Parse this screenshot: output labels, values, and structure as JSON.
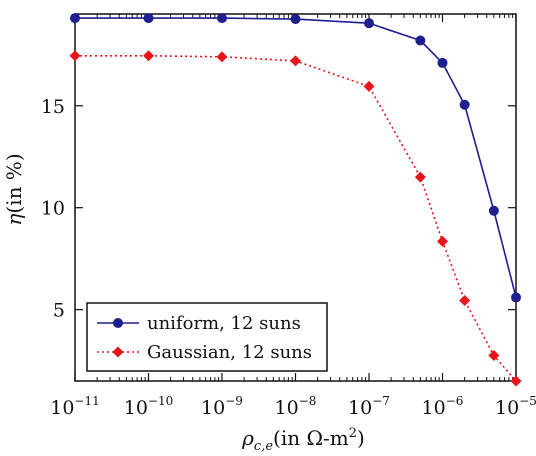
{
  "chart_data": {
    "type": "line",
    "xscale": "log",
    "xlabel_symbol": "ρ",
    "xlabel_sub": "c,e",
    "xlabel_text": "(in Ω-m",
    "xlabel_sup": "2",
    "xlabel_close": ")",
    "ylabel_symbol": "η",
    "ylabel_text": "(in %)",
    "xlim": [
      1e-11,
      1e-05
    ],
    "ylim": [
      1.5,
      19.5
    ],
    "x_ticks": [
      {
        "base": "10",
        "exp": "−11",
        "value": 1e-11
      },
      {
        "base": "10",
        "exp": "−10",
        "value": 1e-10
      },
      {
        "base": "10",
        "exp": "−9",
        "value": 1e-09
      },
      {
        "base": "10",
        "exp": "−8",
        "value": 1e-08
      },
      {
        "base": "10",
        "exp": "−7",
        "value": 1e-07
      },
      {
        "base": "10",
        "exp": "−6",
        "value": 1e-06
      },
      {
        "base": "10",
        "exp": "−5",
        "value": 1e-05
      }
    ],
    "y_ticks": [
      {
        "label": "5",
        "value": 5
      },
      {
        "label": "10",
        "value": 10
      },
      {
        "label": "15",
        "value": 15
      }
    ],
    "legend_position": "bottom-left",
    "series": [
      {
        "name": "uniform, 12 suns",
        "color": "#1f1f8f",
        "line_style": "solid",
        "marker": "circle",
        "x": [
          1e-11,
          1e-10,
          1e-09,
          1e-08,
          1e-07,
          5e-07,
          1e-06,
          2e-06,
          5e-06,
          1e-05
        ],
        "y": [
          19.3,
          19.3,
          19.3,
          19.25,
          19.05,
          18.2,
          17.1,
          15.05,
          9.85,
          5.6
        ]
      },
      {
        "name": "Gaussian, 12 suns",
        "color": "#e8141b",
        "line_style": "dotted",
        "marker": "diamond",
        "x": [
          1e-11,
          1e-10,
          1e-09,
          1e-08,
          1e-07,
          5e-07,
          1e-06,
          2e-06,
          5e-06,
          1e-05
        ],
        "y": [
          17.45,
          17.45,
          17.4,
          17.2,
          15.95,
          11.5,
          8.35,
          5.45,
          2.75,
          1.5
        ]
      }
    ]
  }
}
